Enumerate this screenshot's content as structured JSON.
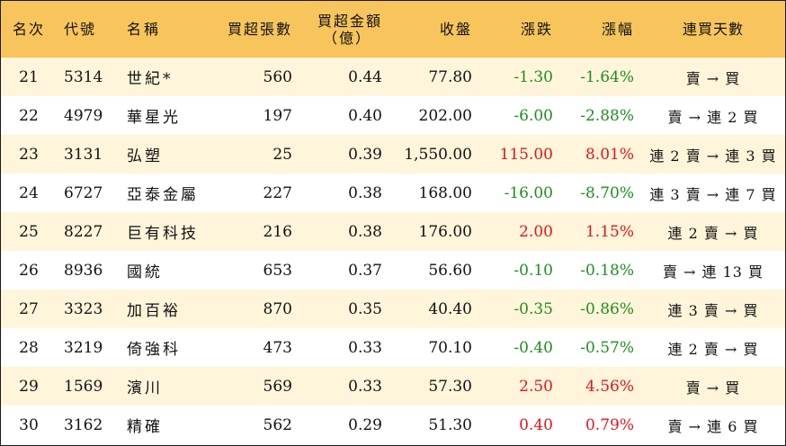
{
  "colors": {
    "header_bg": "#f7c55b",
    "stripe_bg": "#fff5da",
    "up": "#e8121a",
    "down": "#1d8f1d"
  },
  "headers": {
    "rank": "名次",
    "code": "代號",
    "name": "名稱",
    "net_lots": "買超張數",
    "net_amount_line1": "買超金額",
    "net_amount_line2": "（億）",
    "close": "收盤",
    "change": "漲跌",
    "change_pct": "漲幅",
    "streak": "連買天數"
  },
  "rows": [
    {
      "rank": "21",
      "code": "5314",
      "name": "世紀*",
      "net_lots": "560",
      "net_amount": "0.44",
      "close": "77.80",
      "change": "-1.30",
      "change_pct": "-1.64%",
      "dir": "down",
      "streak": "賣 → 買"
    },
    {
      "rank": "22",
      "code": "4979",
      "name": "華星光",
      "net_lots": "197",
      "net_amount": "0.40",
      "close": "202.00",
      "change": "-6.00",
      "change_pct": "-2.88%",
      "dir": "down",
      "streak": "賣 → 連 2 買"
    },
    {
      "rank": "23",
      "code": "3131",
      "name": "弘塑",
      "net_lots": "25",
      "net_amount": "0.39",
      "close": "1,550.00",
      "change": "115.00",
      "change_pct": "8.01%",
      "dir": "up",
      "streak": "連 2 賣 → 連 3 買"
    },
    {
      "rank": "24",
      "code": "6727",
      "name": "亞泰金屬",
      "net_lots": "227",
      "net_amount": "0.38",
      "close": "168.00",
      "change": "-16.00",
      "change_pct": "-8.70%",
      "dir": "down",
      "streak": "連 3 賣 → 連 7 買"
    },
    {
      "rank": "25",
      "code": "8227",
      "name": "巨有科技",
      "net_lots": "216",
      "net_amount": "0.38",
      "close": "176.00",
      "change": "2.00",
      "change_pct": "1.15%",
      "dir": "up",
      "streak": "連 2 賣 → 買"
    },
    {
      "rank": "26",
      "code": "8936",
      "name": "國統",
      "net_lots": "653",
      "net_amount": "0.37",
      "close": "56.60",
      "change": "-0.10",
      "change_pct": "-0.18%",
      "dir": "down",
      "streak": "賣 → 連 13 買"
    },
    {
      "rank": "27",
      "code": "3323",
      "name": "加百裕",
      "net_lots": "870",
      "net_amount": "0.35",
      "close": "40.40",
      "change": "-0.35",
      "change_pct": "-0.86%",
      "dir": "down",
      "streak": "連 3 賣 → 買"
    },
    {
      "rank": "28",
      "code": "3219",
      "name": "倚強科",
      "net_lots": "473",
      "net_amount": "0.33",
      "close": "70.10",
      "change": "-0.40",
      "change_pct": "-0.57%",
      "dir": "down",
      "streak": "連 2 賣 → 買"
    },
    {
      "rank": "29",
      "code": "1569",
      "name": "濱川",
      "net_lots": "569",
      "net_amount": "0.33",
      "close": "57.30",
      "change": "2.50",
      "change_pct": "4.56%",
      "dir": "up",
      "streak": "賣 → 買"
    },
    {
      "rank": "30",
      "code": "3162",
      "name": "精確",
      "net_lots": "562",
      "net_amount": "0.29",
      "close": "51.30",
      "change": "0.40",
      "change_pct": "0.79%",
      "dir": "up",
      "streak": "賣 → 連 6 買"
    }
  ]
}
